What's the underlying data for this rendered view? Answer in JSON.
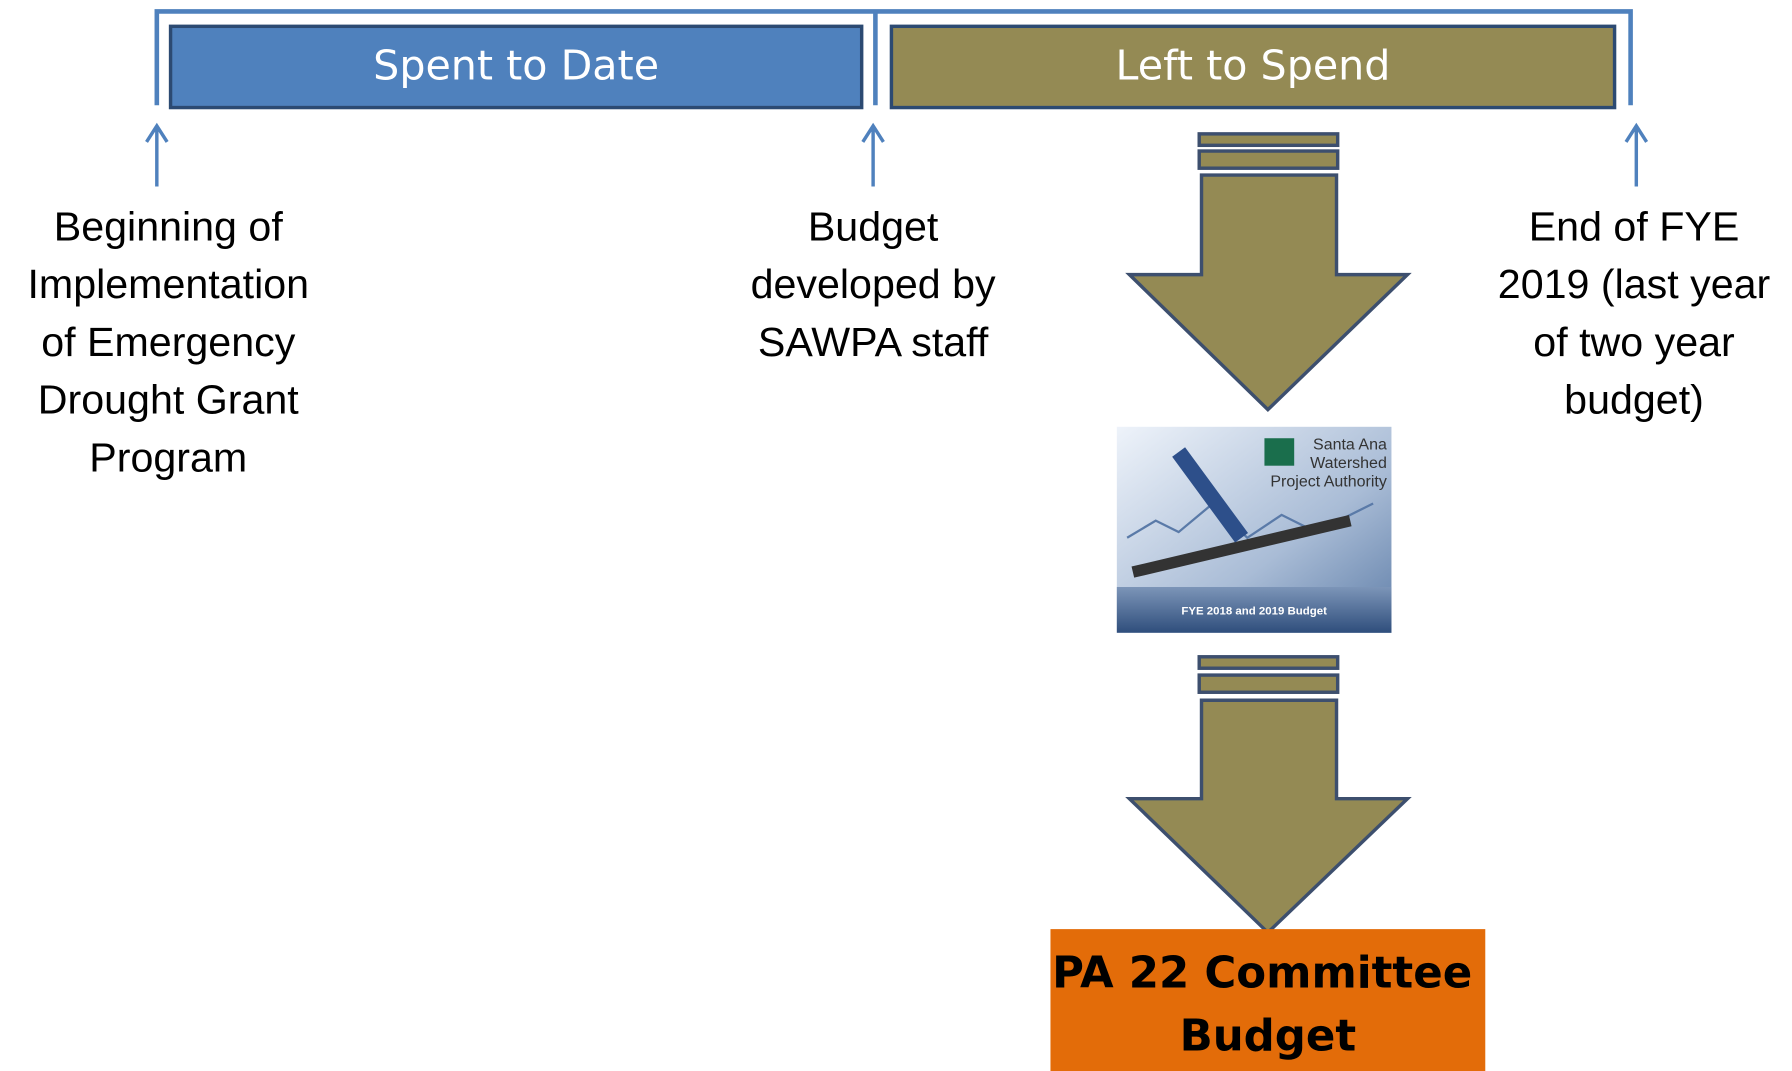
{
  "phases": [
    {
      "label": "Spent to Date"
    },
    {
      "label": "Left to Spend"
    }
  ],
  "milestones": [
    {
      "lines": [
        "Beginning of",
        "Implementation",
        "of Emergency",
        "Drought Grant",
        "Program"
      ]
    },
    {
      "lines": [
        "Budget",
        "developed by",
        "SAWPA staff"
      ]
    },
    {
      "lines": [
        "End of FYE",
        "2019 (last year",
        "of two year",
        "budget)"
      ]
    }
  ],
  "document": {
    "org_lines": [
      "Santa Ana",
      "Watershed",
      "Project Authority"
    ],
    "caption": "FYE 2018 and 2019 Budget"
  },
  "result": {
    "lines": [
      "PA 22 Committee",
      "Budget"
    ]
  }
}
